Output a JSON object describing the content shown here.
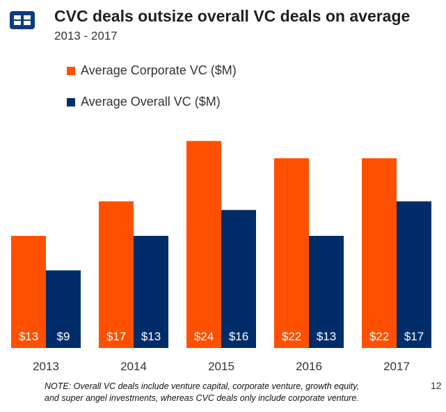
{
  "header": {
    "title": "CVC deals outsize overall VC deals on average",
    "subtitle": "2013 - 2017"
  },
  "footer": {
    "note_line1": "NOTE: Overall VC deals include venture capital, corporate venture, growth equity,",
    "note_line2": "and super angel investments, whereas CVC deals only include corporate venture.",
    "page_number": "12"
  },
  "logo": {
    "icon": "cb-insights-logo-icon",
    "color": "#0b3b82"
  },
  "colors": {
    "corporate": "#ff5000",
    "overall": "#002d6a"
  },
  "chart_data": {
    "type": "bar",
    "categories": [
      "2013",
      "2014",
      "2015",
      "2016",
      "2017"
    ],
    "series": [
      {
        "name": "Average Corporate VC ($M)",
        "values": [
          13,
          17,
          24,
          22,
          22
        ],
        "labels": [
          "$13",
          "$17",
          "$24",
          "$22",
          "$22"
        ]
      },
      {
        "name": "Average Overall VC ($M)",
        "values": [
          9,
          13,
          16,
          13,
          17
        ],
        "labels": [
          "$9",
          "$13",
          "$16",
          "$13",
          "$17"
        ]
      }
    ],
    "title": "CVC deals outsize overall VC deals on average",
    "subtitle": "2013 - 2017",
    "xlabel": "",
    "ylabel": "",
    "ylim": [
      0,
      25.5
    ],
    "grid": false,
    "legend": "top-left"
  }
}
